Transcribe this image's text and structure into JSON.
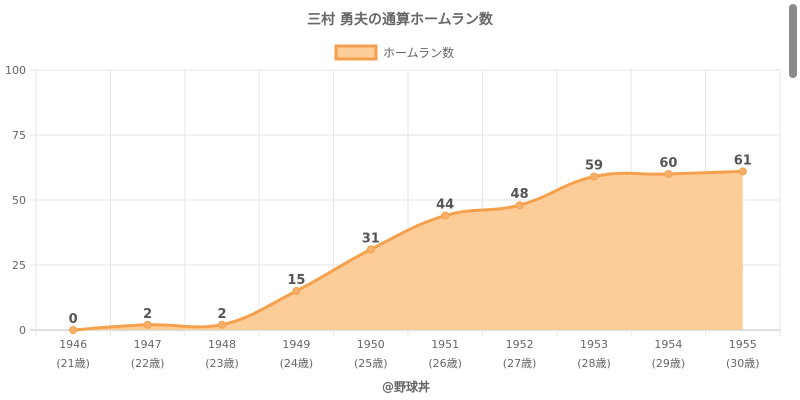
{
  "chart_data": {
    "type": "area",
    "title": "三村 勇夫の通算ホームラン数",
    "legend": {
      "label": "ホームラン数",
      "placement": "top-center"
    },
    "categories": [
      "1946",
      "1947",
      "1948",
      "1949",
      "1950",
      "1951",
      "1952",
      "1953",
      "1954",
      "1955"
    ],
    "sublabels": [
      "(21歳)",
      "(22歳)",
      "(23歳)",
      "(24歳)",
      "(25歳)",
      "(26歳)",
      "(27歳)",
      "(28歳)",
      "(29歳)",
      "(30歳)"
    ],
    "series": [
      {
        "name": "ホームラン数",
        "values": [
          0,
          2,
          2,
          15,
          31,
          44,
          48,
          59,
          60,
          61
        ]
      }
    ],
    "ylim": [
      0,
      100
    ],
    "yticks": [
      0,
      25,
      50,
      75,
      100
    ],
    "grid": true,
    "data_labels": true,
    "colors": {
      "line": "#f5a04c",
      "fill": "#fdcd99",
      "point": "#f7b06a",
      "grid": "#e6e6e6",
      "text": "#666666",
      "label": "#555555"
    }
  },
  "footer": {
    "credit": "@野球丼"
  }
}
